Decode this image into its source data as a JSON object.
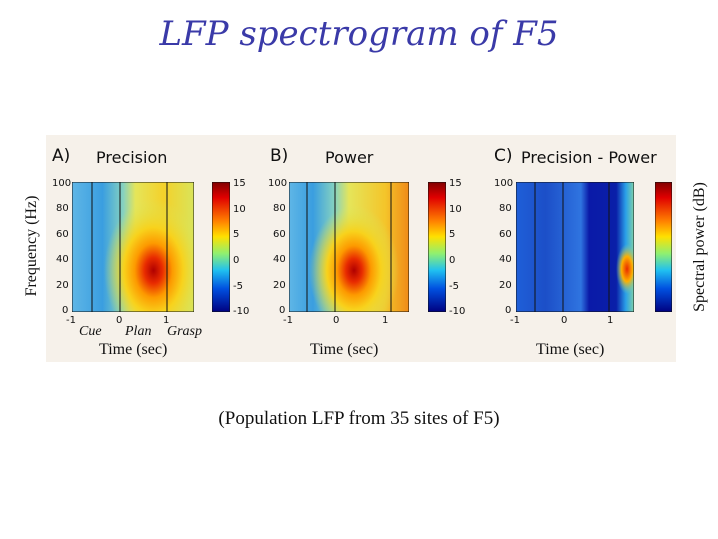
{
  "title": "LFP spectrogram of F5",
  "caption": "(Population LFP from 35 sites of F5)",
  "ylabel_left": "Frequency (Hz)",
  "ylabel_right": "Spectral power (dB)",
  "phases": [
    "Cue",
    "Plan",
    "Grasp"
  ],
  "panels": [
    {
      "letter": "A)",
      "title": "Precision",
      "xlabel": "Time (sec)",
      "yticks": [
        "100",
        "80",
        "60",
        "40",
        "20",
        "0"
      ],
      "xticks": [
        "-1",
        "0",
        "1"
      ],
      "cbar_ticks": [
        "15",
        "10",
        "5",
        "0",
        "-5",
        "-10"
      ]
    },
    {
      "letter": "B)",
      "title": "Power",
      "xlabel": "Time (sec)",
      "yticks": [
        "100",
        "80",
        "60",
        "40",
        "20",
        "0"
      ],
      "xticks": [
        "-1",
        "0",
        "1"
      ],
      "cbar_ticks": [
        "15",
        "10",
        "5",
        "0",
        "-5",
        "-10"
      ]
    },
    {
      "letter": "C)",
      "title": "Precision - Power",
      "xlabel": "Time (sec)",
      "yticks": [
        "100",
        "80",
        "60",
        "40",
        "20",
        "0"
      ],
      "xticks": [
        "-1",
        "0",
        "1"
      ],
      "cbar_ticks": [
        "",
        "",
        "",
        "",
        "",
        ""
      ]
    }
  ],
  "colors": {
    "title": "#3a3aa8"
  }
}
